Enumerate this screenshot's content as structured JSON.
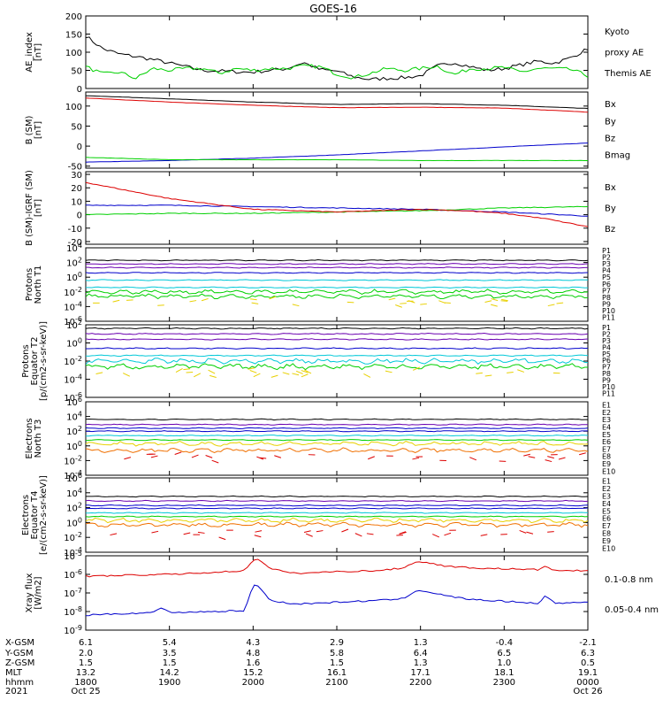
{
  "title": "GOES-16",
  "colors": {
    "black": "#000000",
    "green": "#00d000",
    "red": "#dd0000",
    "blue": "#0000cc",
    "purple": "#6a00b0",
    "cyan": "#00c8d8",
    "yellow": "#e8d000",
    "orange": "#f07000"
  },
  "chart_data": [
    {
      "type": "line",
      "id": "ae",
      "ylabel": [
        "AE_index",
        "[nT]"
      ],
      "ylim": [
        0,
        200
      ],
      "ticks": [
        "0",
        "50",
        "100",
        "150",
        "200"
      ],
      "series": [
        {
          "name": "Themis AE",
          "color": "black",
          "x": [
            0,
            0.2,
            0.4,
            0.6,
            0.8,
            1.0,
            1.2,
            1.4,
            1.6,
            1.8,
            2.0,
            2.2,
            2.4,
            2.6,
            2.8,
            3.0,
            3.2,
            3.4,
            3.6,
            3.8,
            4.0,
            4.2,
            4.4,
            4.6,
            4.8,
            5.0,
            5.2,
            5.4,
            5.6,
            5.8,
            6.0
          ],
          "y": [
            145,
            110,
            95,
            88,
            80,
            70,
            60,
            50,
            48,
            46,
            45,
            50,
            55,
            72,
            52,
            48,
            32,
            25,
            28,
            30,
            35,
            62,
            72,
            60,
            50,
            55,
            65,
            75,
            70,
            85,
            110
          ]
        },
        {
          "name": "Kyoto proxy AE",
          "color": "green",
          "x": [
            0,
            0.2,
            0.4,
            0.6,
            0.8,
            1.0,
            1.2,
            1.4,
            1.6,
            1.8,
            2.0,
            2.2,
            2.4,
            2.6,
            2.8,
            3.0,
            3.2,
            3.4,
            3.6,
            3.8,
            4.0,
            4.2,
            4.4,
            4.6,
            4.8,
            5.0,
            5.2,
            5.4,
            5.6,
            5.8,
            6.0
          ],
          "y": [
            60,
            40,
            45,
            28,
            55,
            50,
            55,
            55,
            42,
            55,
            50,
            55,
            55,
            62,
            60,
            40,
            30,
            42,
            55,
            50,
            55,
            62,
            38,
            55,
            55,
            58,
            45,
            55,
            55,
            52,
            35
          ]
        }
      ],
      "legend": [
        {
          "text": "Kyoto",
          "color": "green"
        },
        {
          "text": "proxy AE",
          "color": "green"
        },
        {
          "text": "Themis AE",
          "color": "black"
        }
      ]
    },
    {
      "type": "line",
      "id": "bsm",
      "ylabel": [
        "B (SM)",
        "[nT]"
      ],
      "ylim": [
        -55,
        135
      ],
      "ticks": [
        "-50",
        "0",
        "50",
        "100"
      ],
      "tick_values": [
        -50,
        0,
        50,
        100
      ],
      "series": [
        {
          "name": "Bx",
          "color": "blue",
          "x": [
            0,
            1,
            2,
            3,
            4,
            5,
            6
          ],
          "y": [
            -40,
            -36,
            -30,
            -22,
            -12,
            -2,
            8
          ]
        },
        {
          "name": "By",
          "color": "green",
          "x": [
            0,
            1,
            2,
            3,
            4,
            5,
            6
          ],
          "y": [
            -28,
            -34,
            -34,
            -34,
            -36,
            -36,
            -36
          ]
        },
        {
          "name": "Bz",
          "color": "red",
          "x": [
            0,
            1,
            2,
            3,
            4,
            5,
            6
          ],
          "y": [
            120,
            110,
            102,
            96,
            97,
            95,
            85
          ]
        },
        {
          "name": "Bmag",
          "color": "black",
          "x": [
            0,
            1,
            2,
            3,
            4,
            5,
            6
          ],
          "y": [
            126,
            118,
            110,
            104,
            106,
            102,
            94
          ]
        }
      ],
      "legend": [
        {
          "text": "Bx",
          "color": "blue"
        },
        {
          "text": "By",
          "color": "green"
        },
        {
          "text": "Bz",
          "color": "red"
        },
        {
          "text": "Bmag",
          "color": "black"
        }
      ]
    },
    {
      "type": "line",
      "id": "bigrf",
      "ylabel": [
        "B (SM)-IGRF (SM)",
        "[nT]"
      ],
      "ylim": [
        -22,
        32
      ],
      "ticks": [
        "-20",
        "-10",
        "0",
        "10",
        "20",
        "30"
      ],
      "tick_values": [
        -20,
        -10,
        0,
        10,
        20,
        30
      ],
      "series": [
        {
          "name": "Bx",
          "color": "blue",
          "x": [
            0,
            1,
            2,
            3,
            4,
            5,
            6
          ],
          "y": [
            7,
            7,
            6,
            5,
            4,
            2,
            -1
          ]
        },
        {
          "name": "By",
          "color": "green",
          "x": [
            0,
            1,
            2,
            3,
            4,
            5,
            6
          ],
          "y": [
            0,
            1,
            1,
            2,
            3,
            5,
            6
          ]
        },
        {
          "name": "Bz",
          "color": "red",
          "x": [
            0,
            0.5,
            1,
            1.5,
            2,
            2.5,
            3,
            3.5,
            4,
            4.5,
            5,
            5.5,
            6
          ],
          "y": [
            24,
            18,
            12,
            8,
            4,
            3,
            2,
            3,
            4,
            3,
            1,
            -3,
            -9
          ]
        }
      ],
      "legend": [
        {
          "text": "Bx",
          "color": "blue"
        },
        {
          "text": "By",
          "color": "green"
        },
        {
          "text": "Bz",
          "color": "red"
        }
      ]
    },
    {
      "type": "line",
      "scale": "log",
      "id": "prot-t1",
      "ylabel": [
        "Protons",
        "North T1"
      ],
      "ylim": [
        -6,
        4
      ],
      "ticks": [
        "10-6",
        "10-4",
        "10-2",
        "100",
        "102",
        "104"
      ],
      "tick_exp": [
        -6,
        -4,
        -2,
        0,
        2,
        4
      ],
      "series_levels": [
        2.3,
        1.8,
        1.3,
        0.6,
        -0.4,
        -1.4,
        -2.0,
        -2.6,
        -3.4
      ],
      "series_colors": [
        "black",
        "purple",
        "purple",
        "blue",
        "cyan",
        "cyan",
        "green",
        "green",
        "yellow"
      ],
      "legend": [
        {
          "text": "P1",
          "color": "black"
        },
        {
          "text": "P2",
          "color": "purple"
        },
        {
          "text": "P3",
          "color": "blue"
        },
        {
          "text": "P4",
          "color": "blue"
        },
        {
          "text": "P5",
          "color": "cyan"
        },
        {
          "text": "P6",
          "color": "cyan"
        },
        {
          "text": "P7",
          "color": "yellow"
        },
        {
          "text": "P8",
          "color": "yellow"
        },
        {
          "text": "P9",
          "color": "orange"
        },
        {
          "text": "P10",
          "color": "red"
        },
        {
          "text": "P11",
          "color": "red"
        }
      ]
    },
    {
      "type": "line",
      "scale": "log",
      "id": "prot-t2",
      "ylabel": [
        "Protons",
        "Equator T2",
        "[p/(cm2-s-sr-keV)]"
      ],
      "ylim": [
        -6,
        2
      ],
      "ticks": [
        "10-6",
        "10-4",
        "10-2",
        "100",
        "102"
      ],
      "tick_exp": [
        -6,
        -4,
        -2,
        0,
        2
      ],
      "series_levels": [
        1.6,
        1.0,
        0.4,
        -0.6,
        -1.4,
        -2.0,
        -2.6,
        -3.4
      ],
      "series_colors": [
        "black",
        "purple",
        "purple",
        "blue",
        "cyan",
        "cyan",
        "green",
        "yellow"
      ],
      "legend": [
        {
          "text": "P1",
          "color": "black"
        },
        {
          "text": "P2",
          "color": "purple"
        },
        {
          "text": "P3",
          "color": "blue"
        },
        {
          "text": "P4",
          "color": "blue"
        },
        {
          "text": "P5",
          "color": "cyan"
        },
        {
          "text": "P6",
          "color": "cyan"
        },
        {
          "text": "P7",
          "color": "yellow"
        },
        {
          "text": "P8",
          "color": "yellow"
        },
        {
          "text": "P9",
          "color": "orange"
        },
        {
          "text": "P10",
          "color": "red"
        },
        {
          "text": "P11",
          "color": "red"
        }
      ]
    },
    {
      "type": "line",
      "scale": "log",
      "id": "elec-t3",
      "ylabel": [
        "Electrons",
        "North T3"
      ],
      "ylim": [
        -4,
        6
      ],
      "ticks": [
        "10-4",
        "10-2",
        "100",
        "102",
        "104",
        "106"
      ],
      "tick_exp": [
        -4,
        -2,
        0,
        2,
        4,
        6
      ],
      "series_levels": [
        3.6,
        2.9,
        2.4,
        2.0,
        1.4,
        0.8,
        0.3,
        -0.6,
        -1.6
      ],
      "series_colors": [
        "black",
        "purple",
        "blue",
        "blue",
        "cyan",
        "green",
        "yellow",
        "orange",
        "red"
      ],
      "legend": [
        {
          "text": "E1",
          "color": "black"
        },
        {
          "text": "E2",
          "color": "purple"
        },
        {
          "text": "E3",
          "color": "blue"
        },
        {
          "text": "E4",
          "color": "cyan"
        },
        {
          "text": "E5",
          "color": "cyan"
        },
        {
          "text": "E6",
          "color": "yellow"
        },
        {
          "text": "E7",
          "color": "yellow"
        },
        {
          "text": "E8",
          "color": "orange"
        },
        {
          "text": "E9",
          "color": "red"
        },
        {
          "text": "E10",
          "color": "red"
        }
      ]
    },
    {
      "type": "line",
      "scale": "log",
      "id": "elec-t4",
      "ylabel": [
        "Electrons",
        "Equator T4",
        "[e/(cm2-s-sr-keV)]"
      ],
      "ylim": [
        -4,
        6
      ],
      "ticks": [
        "10-4",
        "10-2",
        "100",
        "102",
        "104",
        "106"
      ],
      "tick_exp": [
        -4,
        -2,
        0,
        2,
        4,
        6
      ],
      "series_levels": [
        3.5,
        2.9,
        2.3,
        1.9,
        1.3,
        0.8,
        0.3,
        -0.3,
        -1.5
      ],
      "series_colors": [
        "black",
        "purple",
        "blue",
        "blue",
        "cyan",
        "green",
        "yellow",
        "orange",
        "red"
      ],
      "legend": [
        {
          "text": "E1",
          "color": "black"
        },
        {
          "text": "E2",
          "color": "purple"
        },
        {
          "text": "E3",
          "color": "blue"
        },
        {
          "text": "E4",
          "color": "cyan"
        },
        {
          "text": "E5",
          "color": "cyan"
        },
        {
          "text": "E6",
          "color": "yellow"
        },
        {
          "text": "E7",
          "color": "yellow"
        },
        {
          "text": "E8",
          "color": "orange"
        },
        {
          "text": "E9",
          "color": "red"
        },
        {
          "text": "E10",
          "color": "red"
        }
      ]
    },
    {
      "type": "line",
      "scale": "log",
      "id": "xray",
      "ylabel": [
        "Xray flux",
        "[W/m2]"
      ],
      "ylim": [
        -9,
        -5
      ],
      "ticks": [
        "10-9",
        "10-8",
        "10-7",
        "10-6",
        "10-5"
      ],
      "tick_exp": [
        -9,
        -8,
        -7,
        -6,
        -5
      ],
      "series": [
        {
          "name": "0.1-0.8 nm",
          "color": "red",
          "x": [
            0,
            0.5,
            1,
            1.5,
            1.9,
            2.0,
            2.05,
            2.2,
            2.5,
            3,
            3.5,
            3.8,
            3.95,
            4.05,
            4.3,
            4.6,
            5,
            5.4,
            5.5,
            5.6,
            6
          ],
          "y": [
            -6.1,
            -6.05,
            -6.0,
            -5.9,
            -5.8,
            -5.2,
            -5.15,
            -5.7,
            -5.95,
            -5.85,
            -5.8,
            -5.65,
            -5.3,
            -5.35,
            -5.55,
            -5.65,
            -5.7,
            -5.75,
            -5.55,
            -5.8,
            -5.8
          ]
        },
        {
          "name": "0.05-0.4 nm",
          "color": "blue",
          "x": [
            0,
            0.5,
            0.8,
            0.9,
            1,
            1.5,
            1.9,
            2.0,
            2.05,
            2.2,
            2.5,
            3,
            3.5,
            3.8,
            3.95,
            4.05,
            4.3,
            4.6,
            5,
            5.4,
            5.5,
            5.6,
            6
          ],
          "y": [
            -8.2,
            -8.1,
            -8.05,
            -7.8,
            -8.05,
            -8.0,
            -7.95,
            -6.6,
            -6.55,
            -7.4,
            -7.6,
            -7.5,
            -7.4,
            -7.3,
            -6.85,
            -6.9,
            -7.15,
            -7.35,
            -7.45,
            -7.55,
            -7.15,
            -7.55,
            -7.5
          ]
        }
      ],
      "legend": [
        {
          "text": "0.1-0.8 nm",
          "color": "red"
        },
        {
          "text": "0.05-0.4 nm",
          "color": "blue"
        }
      ]
    }
  ],
  "footer": {
    "row_labels": [
      "X-GSM",
      "Y-GSM",
      "Z-GSM",
      "MLT",
      "hhmm",
      "2021"
    ],
    "columns": [
      [
        "6.1",
        "2.0",
        "1.5",
        "13.2",
        "1800",
        "Oct 25"
      ],
      [
        "5.4",
        "3.5",
        "1.5",
        "14.2",
        "1900",
        ""
      ],
      [
        "4.3",
        "4.8",
        "1.6",
        "15.2",
        "2000",
        ""
      ],
      [
        "2.9",
        "5.8",
        "1.5",
        "16.1",
        "2100",
        ""
      ],
      [
        "1.3",
        "6.4",
        "1.3",
        "17.1",
        "2200",
        ""
      ],
      [
        "-0.4",
        "6.5",
        "1.0",
        "18.1",
        "2300",
        ""
      ],
      [
        "-2.1",
        "6.3",
        "0.5",
        "19.1",
        "0000",
        "Oct 26"
      ]
    ]
  }
}
